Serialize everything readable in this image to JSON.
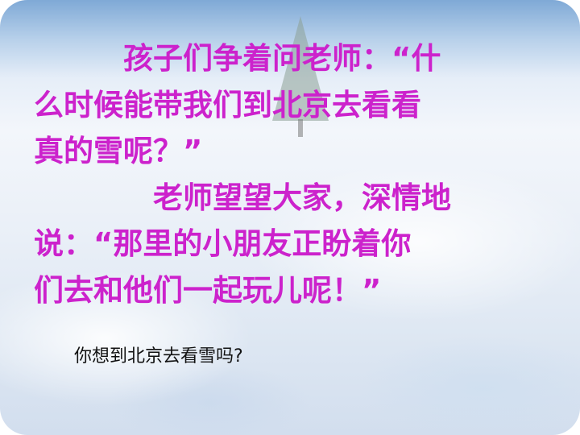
{
  "slide": {
    "paragraph1": {
      "line1": "孩子们争着问老师：“什",
      "line2": "么时候能带我们到北京去看看",
      "line3": "真的雪呢？”"
    },
    "paragraph2": {
      "line1": "老师望望大家，深情地",
      "line2": "说：“那里的小朋友正盼着你",
      "line3": "们去和他们一起玩儿呢！”"
    },
    "question": "你想到北京去看雪吗?"
  },
  "colors": {
    "main_text": "#cc22cc",
    "question_text": "#111111",
    "sky": "#7fa9d6",
    "snow": "#f3f6fb"
  },
  "background": {
    "scene": "snow-field-with-tree"
  }
}
